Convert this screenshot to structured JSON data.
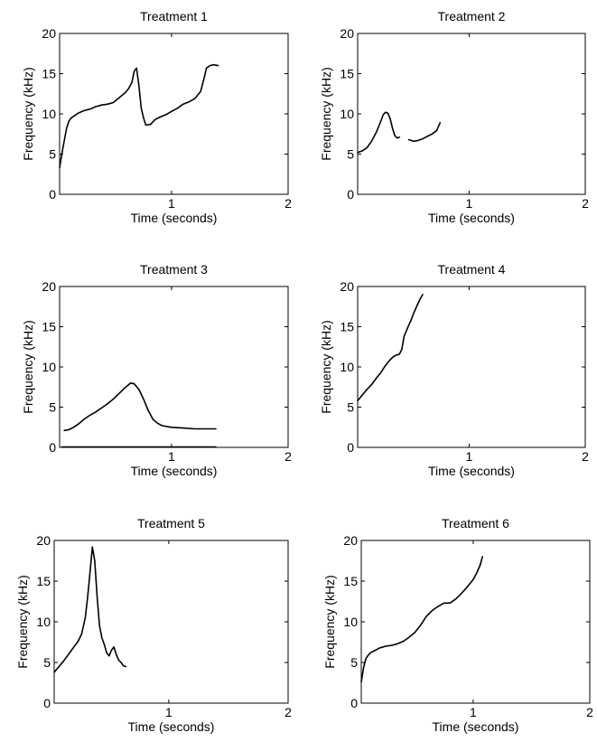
{
  "chart_data": [
    {
      "type": "line",
      "title": "Treatment 1",
      "xlabel": "Time (seconds)",
      "ylabel": "Frequency (kHz)",
      "xlim": [
        0.04,
        2
      ],
      "ylim": [
        0,
        20
      ],
      "xticks": [
        1,
        2
      ],
      "yticks": [
        0,
        5,
        10,
        15,
        20
      ],
      "series": [
        {
          "x": [
            0.04,
            0.06,
            0.08,
            0.1,
            0.12,
            0.14,
            0.17,
            0.2,
            0.25,
            0.3,
            0.35,
            0.4,
            0.45,
            0.5,
            0.55,
            0.6,
            0.63,
            0.66,
            0.68,
            0.7,
            0.72,
            0.74,
            0.76,
            0.78,
            0.82,
            0.86,
            0.9,
            0.95,
            1.0,
            1.05,
            1.1,
            1.15,
            1.2,
            1.25,
            1.28,
            1.3,
            1.33,
            1.36,
            1.4
          ],
          "y": [
            3.3,
            5.1,
            6.7,
            8.2,
            9.1,
            9.5,
            9.8,
            10.1,
            10.4,
            10.6,
            10.9,
            11.1,
            11.2,
            11.4,
            12.0,
            12.6,
            13.1,
            13.9,
            15.3,
            15.7,
            13.5,
            10.7,
            9.5,
            8.6,
            8.7,
            9.3,
            9.6,
            9.9,
            10.3,
            10.7,
            11.2,
            11.5,
            11.9,
            12.8,
            14.5,
            15.7,
            16.0,
            16.1,
            16.0
          ]
        }
      ]
    },
    {
      "type": "line",
      "title": "Treatment 2",
      "xlabel": "Time (seconds)",
      "ylabel": "Frequency (kHz)",
      "xlim": [
        0.04,
        2
      ],
      "ylim": [
        0,
        20
      ],
      "xticks": [
        1,
        2
      ],
      "yticks": [
        0,
        5,
        10,
        15,
        20
      ],
      "series": [
        {
          "x": [
            0.04,
            0.08,
            0.12,
            0.16,
            0.2,
            0.24,
            0.26,
            0.28,
            0.3,
            0.32,
            0.34,
            0.36,
            0.38,
            0.4
          ],
          "y": [
            5.2,
            5.4,
            5.8,
            6.6,
            7.7,
            9.1,
            9.9,
            10.2,
            10.1,
            9.4,
            8.2,
            7.3,
            7.0,
            7.1
          ]
        },
        {
          "x": [
            0.48,
            0.52,
            0.56,
            0.6,
            0.64,
            0.68,
            0.72,
            0.75
          ],
          "y": [
            6.8,
            6.6,
            6.7,
            6.9,
            7.2,
            7.5,
            7.9,
            8.9
          ]
        }
      ]
    },
    {
      "type": "line",
      "title": "Treatment 3",
      "xlabel": "Time (seconds)",
      "ylabel": "Frequency (kHz)",
      "xlim": [
        0.04,
        2
      ],
      "ylim": [
        0,
        20
      ],
      "xticks": [
        1,
        2
      ],
      "yticks": [
        0,
        5,
        10,
        15,
        20
      ],
      "series": [
        {
          "x": [
            0.08,
            0.12,
            0.16,
            0.2,
            0.25,
            0.3,
            0.35,
            0.4,
            0.45,
            0.5,
            0.55,
            0.6,
            0.65,
            0.68,
            0.72,
            0.76,
            0.8,
            0.84,
            0.88,
            0.92,
            0.96,
            1.0,
            1.1,
            1.2,
            1.3,
            1.38
          ],
          "y": [
            2.1,
            2.2,
            2.5,
            2.9,
            3.5,
            4.0,
            4.4,
            4.9,
            5.4,
            6.0,
            6.7,
            7.4,
            8.0,
            7.9,
            7.2,
            6.0,
            4.6,
            3.5,
            3.0,
            2.7,
            2.6,
            2.5,
            2.4,
            2.3,
            2.3,
            2.3
          ]
        },
        {
          "x": [
            0.06,
            1.38
          ],
          "y": [
            0.05,
            0.05
          ]
        }
      ]
    },
    {
      "type": "line",
      "title": "Treatment 4",
      "xlabel": "Time (seconds)",
      "ylabel": "Frequency (kHz)",
      "xlim": [
        0.04,
        2
      ],
      "ylim": [
        0,
        20
      ],
      "xticks": [
        1,
        2
      ],
      "yticks": [
        0,
        5,
        10,
        15,
        20
      ],
      "series": [
        {
          "x": [
            0.04,
            0.08,
            0.12,
            0.16,
            0.2,
            0.24,
            0.28,
            0.32,
            0.35,
            0.38,
            0.4,
            0.42,
            0.44,
            0.46,
            0.48,
            0.5,
            0.52,
            0.55,
            0.58,
            0.6
          ],
          "y": [
            5.8,
            6.5,
            7.2,
            7.8,
            8.6,
            9.3,
            10.2,
            10.9,
            11.3,
            11.5,
            11.6,
            12.2,
            13.8,
            14.5,
            15.2,
            15.8,
            16.6,
            17.6,
            18.5,
            19.0
          ]
        }
      ]
    },
    {
      "type": "line",
      "title": "Treatment 5",
      "xlabel": "Time (seconds)",
      "ylabel": "Frequency (kHz)",
      "xlim": [
        0.04,
        2
      ],
      "ylim": [
        0,
        20
      ],
      "xticks": [
        1,
        2
      ],
      "yticks": [
        0,
        5,
        10,
        15,
        20
      ],
      "series": [
        {
          "x": [
            0.04,
            0.08,
            0.12,
            0.16,
            0.2,
            0.24,
            0.27,
            0.3,
            0.32,
            0.34,
            0.36,
            0.38,
            0.4,
            0.42,
            0.44,
            0.46,
            0.48,
            0.5,
            0.52,
            0.54,
            0.56,
            0.58,
            0.6,
            0.62,
            0.64
          ],
          "y": [
            3.8,
            4.5,
            5.2,
            6.0,
            6.8,
            7.6,
            8.5,
            10.5,
            13.0,
            16.0,
            19.2,
            17.5,
            13.0,
            9.5,
            8.0,
            7.2,
            6.2,
            5.8,
            6.5,
            6.9,
            6.0,
            5.3,
            5.0,
            4.6,
            4.5
          ]
        }
      ]
    },
    {
      "type": "line",
      "title": "Treatment 6",
      "xlabel": "Time (seconds)",
      "ylabel": "Frequency (kHz)",
      "xlim": [
        0.04,
        2
      ],
      "ylim": [
        0,
        20
      ],
      "xticks": [
        1,
        2
      ],
      "yticks": [
        0,
        5,
        10,
        15,
        20
      ],
      "series": [
        {
          "x": [
            0.04,
            0.06,
            0.08,
            0.1,
            0.12,
            0.16,
            0.2,
            0.25,
            0.3,
            0.35,
            0.4,
            0.45,
            0.5,
            0.55,
            0.6,
            0.65,
            0.7,
            0.75,
            0.8,
            0.85,
            0.9,
            0.95,
            1.0,
            1.03,
            1.06,
            1.08
          ],
          "y": [
            2.6,
            4.4,
            5.5,
            5.9,
            6.2,
            6.5,
            6.8,
            7.0,
            7.1,
            7.3,
            7.6,
            8.1,
            8.7,
            9.6,
            10.7,
            11.4,
            11.9,
            12.3,
            12.3,
            12.8,
            13.5,
            14.3,
            15.2,
            16.0,
            17.0,
            18.0
          ]
        }
      ]
    }
  ]
}
